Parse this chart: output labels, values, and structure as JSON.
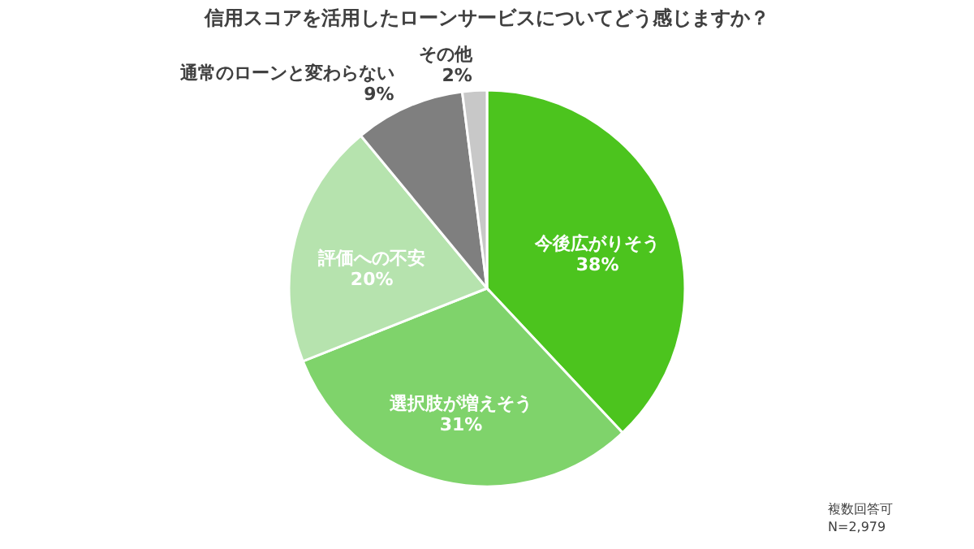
{
  "chart_data": {
    "type": "pie",
    "title": "信用スコアを活用したローンサービスについてどう感じますか？",
    "categories": [
      "今後広がりそう",
      "選択肢が増えそう",
      "評価への不安",
      "通常のローンと変わらない",
      "その他"
    ],
    "values": [
      38,
      31,
      20,
      9,
      2
    ],
    "value_labels": [
      "38%",
      "31%",
      "20%",
      "9%",
      "2%"
    ],
    "colors": [
      "#4cc41e",
      "#7fd36b",
      "#b6e3ae",
      "#7f7f7f",
      "#c8c8c8"
    ],
    "legend": false,
    "annotations": [
      "複数回答可",
      "N=2,979"
    ]
  }
}
